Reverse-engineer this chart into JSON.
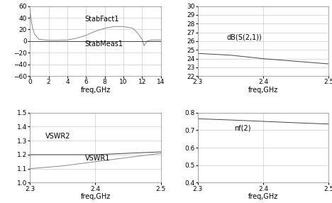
{
  "top_left": {
    "xlabel": "freq,GHz",
    "xlim": [
      0,
      14
    ],
    "ylim": [
      -60,
      60
    ],
    "yticks": [
      -60,
      -40,
      -20,
      0,
      20,
      40,
      60
    ],
    "xticks": [
      0,
      2,
      4,
      6,
      8,
      10,
      12,
      14
    ],
    "label1": "StabFact1",
    "label2": "StabMeas1",
    "stabfact_x": [
      0.01,
      0.05,
      0.1,
      0.2,
      0.3,
      0.5,
      0.8,
      1.0,
      2.0,
      3.0,
      4.0,
      5.0,
      6.0,
      7.0,
      8.0,
      9.0,
      10.0,
      11.0,
      11.5,
      12.0,
      12.2,
      12.5,
      13.0,
      14.0
    ],
    "stabfact_y": [
      55,
      48,
      42,
      30,
      22,
      12,
      6,
      3,
      1.5,
      1.5,
      2,
      5,
      10,
      17,
      22,
      25,
      25,
      22,
      14,
      3,
      -8,
      0,
      2,
      2
    ],
    "stabmeas_x": [
      0.01,
      0.05,
      0.1,
      0.5,
      1.0,
      2.0,
      4.0,
      6.0,
      8.0,
      10.0,
      12.0,
      14.0
    ],
    "stabmeas_y": [
      0,
      0,
      0,
      0,
      0,
      0,
      0,
      0,
      0,
      0,
      0,
      0
    ]
  },
  "top_right": {
    "xlabel": "freq,GHz",
    "xlim": [
      2.3,
      2.5
    ],
    "ylim": [
      22,
      30
    ],
    "yticks": [
      22,
      23,
      24,
      25,
      26,
      27,
      28,
      29,
      30
    ],
    "xticks": [
      2.3,
      2.4,
      2.5
    ],
    "label": "dB(S(2,1))",
    "x": [
      2.3,
      2.35,
      2.4,
      2.45,
      2.5
    ],
    "y": [
      24.6,
      24.4,
      24.0,
      23.7,
      23.4
    ]
  },
  "bot_left": {
    "xlabel": "freq,GHz",
    "xlim": [
      2.3,
      2.5
    ],
    "ylim": [
      1.0,
      1.5
    ],
    "yticks": [
      1.0,
      1.1,
      1.2,
      1.3,
      1.4,
      1.5
    ],
    "xticks": [
      2.3,
      2.4,
      2.5
    ],
    "label1": "VSWR2",
    "label2": "VSWR1",
    "vswr2_x": [
      2.3,
      2.35,
      2.4,
      2.45,
      2.5
    ],
    "vswr2_y": [
      1.2,
      1.2,
      1.2,
      1.21,
      1.22
    ],
    "vswr1_x": [
      2.3,
      2.35,
      2.4,
      2.45,
      2.5
    ],
    "vswr1_y": [
      1.1,
      1.12,
      1.15,
      1.18,
      1.21
    ]
  },
  "bot_right": {
    "xlabel": "freq,GHz",
    "xlim": [
      2.3,
      2.5
    ],
    "ylim": [
      0.4,
      0.8
    ],
    "yticks": [
      0.4,
      0.5,
      0.6,
      0.7,
      0.8
    ],
    "xticks": [
      2.3,
      2.4,
      2.5
    ],
    "label": "nf(2)",
    "x": [
      2.3,
      2.35,
      2.4,
      2.45,
      2.5
    ],
    "y": [
      0.765,
      0.758,
      0.75,
      0.742,
      0.735
    ]
  },
  "line_color_dark": "#444444",
  "line_color_mid": "#888888",
  "grid_color": "#cccccc",
  "bg_color": "#ffffff",
  "font_size": 6.5,
  "label_fontsize": 7
}
